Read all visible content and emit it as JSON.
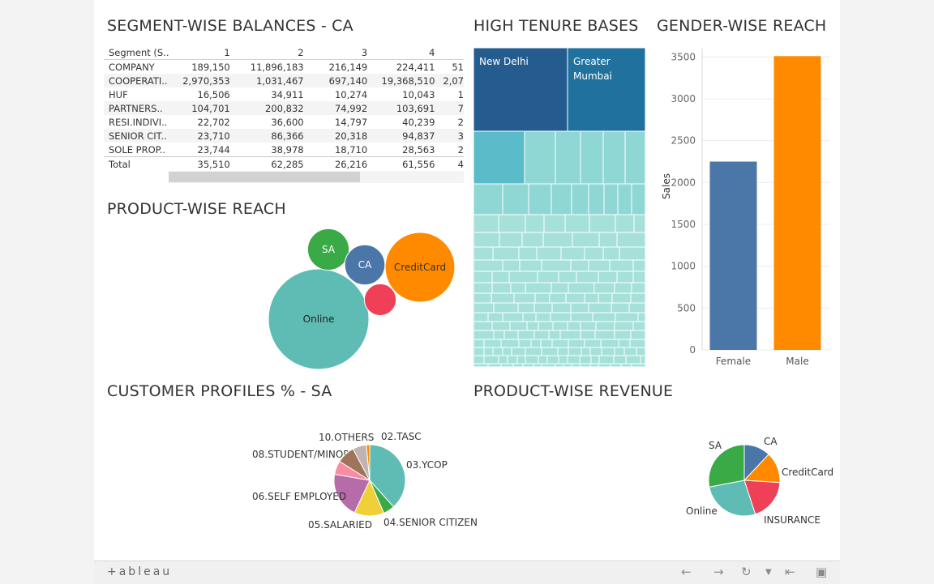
{
  "titles": {
    "segment": "SEGMENT-WISE BALANCES - CA",
    "tenure": "HIGH TENURE BASES",
    "gender": "GENDER-WISE REACH",
    "product_reach": "PRODUCT-WISE REACH",
    "profiles": "CUSTOMER PROFILES % - SA",
    "revenue": "PRODUCT-WISE REVENUE"
  },
  "segment_table": {
    "headers": [
      "Segment (S..",
      "1",
      "2",
      "3",
      "4",
      ""
    ],
    "rows": [
      [
        "COMPANY",
        "189,150",
        "11,896,183",
        "216,149",
        "224,411",
        "51"
      ],
      [
        "COOPERATI..",
        "2,970,353",
        "1,031,467",
        "697,140",
        "19,368,510",
        "2,07"
      ],
      [
        "HUF",
        "16,506",
        "34,911",
        "10,274",
        "10,043",
        "1"
      ],
      [
        "PARTNERS..",
        "104,701",
        "200,832",
        "74,992",
        "103,691",
        "7"
      ],
      [
        "RESI.INDIVI..",
        "22,702",
        "36,600",
        "14,797",
        "40,239",
        "2"
      ],
      [
        "SENIOR CIT..",
        "23,710",
        "86,366",
        "20,318",
        "94,837",
        "3"
      ],
      [
        "SOLE PROP..",
        "23,744",
        "38,978",
        "18,710",
        "28,563",
        "2"
      ],
      [
        "Total",
        "35,510",
        "62,285",
        "26,216",
        "61,556",
        "4"
      ]
    ]
  },
  "treemap": {
    "labels": {
      "a": "New Delhi",
      "b": "Greater",
      "b2": "Mumbai"
    },
    "colors": {
      "dark1": "#255c8f",
      "dark2": "#20719e",
      "mid": "#5bbcc9",
      "light": "#8fd7d5",
      "lighter": "#a5e1d8"
    }
  },
  "chart_data": [
    {
      "type": "bar",
      "name": "gender",
      "categories": [
        "Female",
        "Male"
      ],
      "values": [
        2250,
        3510
      ],
      "colors": [
        "#4a77a8",
        "#ff8a00"
      ],
      "ylabel": "Sales",
      "ylim": [
        0,
        3600
      ],
      "yticks": [
        0,
        500,
        1000,
        1500,
        2000,
        2500,
        3000,
        3500
      ],
      "grid": true
    },
    {
      "type": "bubble",
      "name": "product_reach",
      "items": [
        {
          "label": "Online",
          "value": 100,
          "color": "#5fbcb5"
        },
        {
          "label": "CreditCard",
          "value": 48,
          "color": "#ff8a00"
        },
        {
          "label": "SA",
          "value": 17,
          "color": "#3aaa47"
        },
        {
          "label": "CA",
          "value": 16,
          "color": "#4a77a8"
        },
        {
          "label": "",
          "value": 10,
          "color": "#ef4058"
        }
      ]
    },
    {
      "type": "pie",
      "name": "profiles",
      "slices": [
        {
          "label": "03.YCOP",
          "value": 37,
          "color": "#5fbcb5"
        },
        {
          "label": "04.SENIOR CITIZEN",
          "value": 5,
          "color": "#3aaa47"
        },
        {
          "label": "05.SALARIED",
          "value": 13,
          "color": "#f0cf38"
        },
        {
          "label": "06.SELF EMPLOYED",
          "value": 20,
          "color": "#b66ca8"
        },
        {
          "label": "08.STUDENT/MINOR",
          "value": 6,
          "color": "#fa8ba0"
        },
        {
          "label": "10.OTHERS",
          "value": 8,
          "color": "#a0745a"
        },
        {
          "label": "",
          "value": 6,
          "color": "#c0b4b0"
        },
        {
          "label": "02.TASC",
          "value": 1.5,
          "color": "#ff8a00"
        }
      ]
    },
    {
      "type": "pie",
      "name": "revenue",
      "slices": [
        {
          "label": "CA",
          "value": 12,
          "color": "#4a77a8"
        },
        {
          "label": "CreditCard",
          "value": 14,
          "color": "#ff8a00"
        },
        {
          "label": "INSURANCE",
          "value": 19,
          "color": "#ef4058"
        },
        {
          "label": "Online",
          "value": 27,
          "color": "#5fbcb5"
        },
        {
          "label": "SA",
          "value": 28,
          "color": "#3aaa47"
        }
      ]
    }
  ],
  "toolbar": {
    "brand": "+ableau",
    "icons": [
      "undo-icon",
      "redo-icon",
      "revert-icon",
      "dropdown-icon",
      "reset-icon",
      "fullscreen-icon"
    ]
  }
}
